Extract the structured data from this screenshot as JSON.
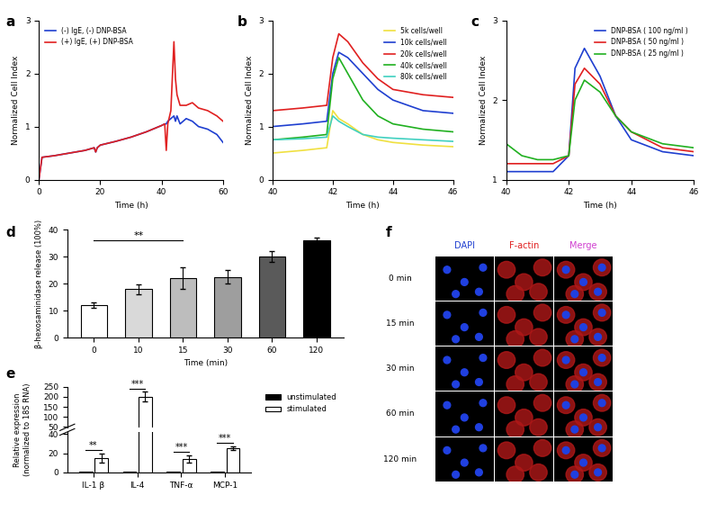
{
  "chart_data": [
    {
      "panel": "a",
      "type": "line",
      "x_label": "Time (h)",
      "y_label": "Normalized Cell Index",
      "x": [
        0,
        1,
        5,
        10,
        15,
        18,
        18.5,
        19,
        20,
        25,
        30,
        35,
        40,
        41,
        41.5,
        42,
        43,
        44,
        44.5,
        45,
        46,
        48,
        50,
        52,
        55,
        58,
        60
      ],
      "series": [
        {
          "name": "(-) IgE, (-) DNP-BSA",
          "color": "#1f3fd0",
          "values": [
            0,
            0.42,
            0.45,
            0.5,
            0.55,
            0.6,
            0.52,
            0.6,
            0.65,
            0.72,
            0.8,
            0.9,
            1.02,
            1.05,
            1.05,
            1.1,
            1.15,
            1.2,
            1.1,
            1.2,
            1.05,
            1.15,
            1.1,
            1.0,
            0.95,
            0.85,
            0.7
          ]
        },
        {
          "name": "(+) IgE, (+) DNP-BSA",
          "color": "#e02020",
          "values": [
            0,
            0.42,
            0.45,
            0.5,
            0.55,
            0.6,
            0.52,
            0.6,
            0.65,
            0.72,
            0.8,
            0.9,
            1.02,
            1.05,
            0.55,
            1.05,
            1.3,
            2.6,
            1.9,
            1.6,
            1.4,
            1.4,
            1.45,
            1.35,
            1.3,
            1.2,
            1.1
          ]
        }
      ],
      "xlim": [
        0,
        60
      ],
      "xticks": [
        0,
        20,
        40,
        60
      ],
      "ylim": [
        0,
        3
      ],
      "yticks": [
        0,
        1,
        2,
        3
      ],
      "legend": "upper left"
    },
    {
      "panel": "b",
      "type": "line",
      "x_label": "Time (h)",
      "y_label": "Normalized Cell Index",
      "x": [
        40,
        41,
        41.8,
        42,
        42.2,
        42.5,
        43,
        43.5,
        44,
        45,
        46
      ],
      "series": [
        {
          "name": "5k cells/well",
          "color": "#f0e040",
          "values": [
            0.5,
            0.55,
            0.6,
            1.3,
            1.15,
            1.05,
            0.85,
            0.75,
            0.7,
            0.65,
            0.62
          ]
        },
        {
          "name": "10k cells/well",
          "color": "#1f3fd0",
          "values": [
            1.0,
            1.05,
            1.1,
            2.0,
            2.4,
            2.3,
            2.0,
            1.7,
            1.5,
            1.3,
            1.25
          ]
        },
        {
          "name": "20k cells/well",
          "color": "#e02020",
          "values": [
            1.3,
            1.35,
            1.4,
            2.3,
            2.75,
            2.6,
            2.2,
            1.9,
            1.7,
            1.6,
            1.55
          ]
        },
        {
          "name": "40k cells/well",
          "color": "#20b020",
          "values": [
            0.75,
            0.8,
            0.85,
            1.9,
            2.3,
            2.0,
            1.5,
            1.2,
            1.05,
            0.95,
            0.9
          ]
        },
        {
          "name": "80k cells/well",
          "color": "#40d0c0",
          "values": [
            0.75,
            0.77,
            0.8,
            1.2,
            1.1,
            1.0,
            0.85,
            0.8,
            0.78,
            0.75,
            0.72
          ]
        }
      ],
      "xlim": [
        40,
        46
      ],
      "xticks": [
        40,
        42,
        44,
        46
      ],
      "ylim": [
        0,
        3
      ],
      "yticks": [
        0,
        1,
        2,
        3
      ],
      "legend": "upper right"
    },
    {
      "panel": "c",
      "type": "line",
      "x_label": "Time (h)",
      "y_label": "Normalized Cell Index",
      "x": [
        40,
        40.5,
        41,
        41.5,
        42,
        42.2,
        42.5,
        43,
        43.5,
        44,
        45,
        46
      ],
      "series": [
        {
          "name": "DNP-BSA ( 100 ng/ml )",
          "color": "#1f3fd0",
          "values": [
            1.1,
            1.1,
            1.1,
            1.1,
            1.3,
            2.4,
            2.65,
            2.3,
            1.8,
            1.5,
            1.35,
            1.3
          ]
        },
        {
          "name": "DNP-BSA ( 50 ng/ml )",
          "color": "#e02020",
          "values": [
            1.2,
            1.2,
            1.2,
            1.2,
            1.3,
            2.2,
            2.4,
            2.2,
            1.8,
            1.6,
            1.4,
            1.35
          ]
        },
        {
          "name": "DNP-BSA ( 25 ng/ml )",
          "color": "#20b020",
          "values": [
            1.45,
            1.3,
            1.25,
            1.25,
            1.3,
            2.0,
            2.25,
            2.1,
            1.8,
            1.6,
            1.45,
            1.4
          ]
        }
      ],
      "xlim": [
        40,
        46
      ],
      "xticks": [
        40,
        42,
        44,
        46
      ],
      "ylim": [
        1,
        3
      ],
      "yticks": [
        1,
        2,
        3
      ],
      "legend": "upper right"
    },
    {
      "panel": "d",
      "type": "bar",
      "x_label": "Time (min)",
      "y_label": "β-hexosaminidase release (100%)",
      "categories": [
        "0",
        "10",
        "15",
        "30",
        "60",
        "120"
      ],
      "values": [
        12,
        18,
        22,
        22.5,
        30,
        36
      ],
      "errors": [
        1,
        1.8,
        4,
        2.5,
        2,
        1
      ],
      "colors": [
        "#ffffff",
        "#d9d9d9",
        "#bdbdbd",
        "#9e9e9e",
        "#5a5a5a",
        "#000000"
      ],
      "ylim": [
        0,
        40
      ],
      "yticks": [
        0,
        10,
        20,
        30,
        40
      ],
      "significance": [
        {
          "from": "0",
          "to": "15",
          "label": "**"
        }
      ]
    },
    {
      "panel": "e",
      "type": "bar",
      "y_label": "Relative expression\n(normalized to 18S RNA)",
      "categories": [
        "IL-1 β",
        "IL-4",
        "TNF-α",
        "MCP-1"
      ],
      "series": [
        {
          "name": "unstimulated",
          "color": "#000000",
          "values": [
            1,
            1,
            1,
            1
          ]
        },
        {
          "name": "stimulated",
          "color": "#ffffff",
          "values": [
            15,
            200,
            14,
            25
          ],
          "errors": [
            5,
            25,
            4,
            2
          ]
        }
      ],
      "ylim": [
        0,
        250
      ],
      "y_break": [
        42,
        48
      ],
      "yticks": [
        0,
        20,
        40,
        50,
        100,
        150,
        200,
        250
      ],
      "significance": [
        "**",
        "***",
        "***",
        "***"
      ],
      "legend": "upper left"
    }
  ],
  "panel_f": {
    "panel": "f",
    "columns": [
      {
        "label": "DAPI",
        "color": "#1f3fd0"
      },
      {
        "label": "F-actin",
        "color": "#e02020"
      },
      {
        "label": "Merge",
        "color": "#d040d0"
      }
    ],
    "rows": [
      "0 min",
      "15 min",
      "30 min",
      "60 min",
      "120 min"
    ]
  }
}
